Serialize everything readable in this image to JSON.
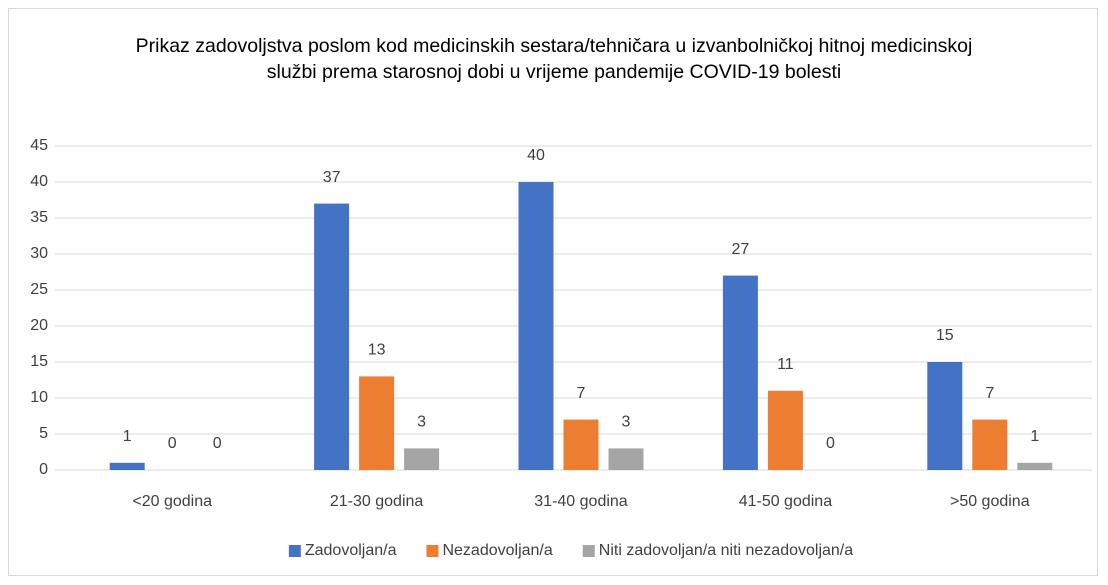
{
  "chart_data": {
    "type": "bar",
    "title": "Prikaz zadovoljstva poslom kod medicinskih sestara/tehničara u izvanbolničkoj hitnoj medicinskoj službi prema starosnoj dobi u vrijeme pandemije COVID-19 bolesti",
    "categories": [
      "<20 godina",
      "21-30 godina",
      "31-40 godina",
      "41-50 godina",
      ">50 godina"
    ],
    "series": [
      {
        "name": "Zadovoljan/a",
        "color": "#4472c4",
        "values": [
          1,
          37,
          40,
          27,
          15
        ]
      },
      {
        "name": "Nezadovoljan/a",
        "color": "#ed7d31",
        "values": [
          0,
          13,
          7,
          11,
          7
        ]
      },
      {
        "name": "Niti zadovoljan/a niti nezadovoljan/a",
        "color": "#a5a5a5",
        "values": [
          0,
          3,
          3,
          0,
          1
        ]
      }
    ],
    "ylim": [
      0,
      45
    ],
    "yticks": [
      0,
      5,
      10,
      15,
      20,
      25,
      30,
      35,
      40,
      45
    ],
    "grid": true,
    "legend": "bottom"
  }
}
